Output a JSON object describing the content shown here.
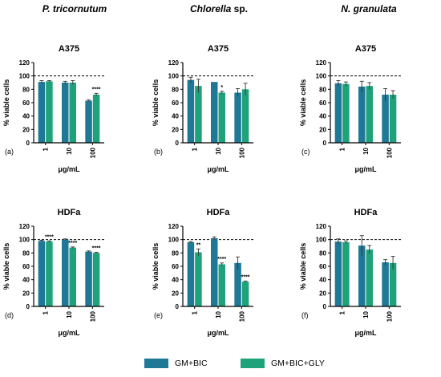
{
  "column_titles": [
    {
      "italic": "P. tricornutum",
      "roman": ""
    },
    {
      "italic": "Chlorella",
      "roman": " sp."
    },
    {
      "italic": "N. granulata",
      "roman": ""
    }
  ],
  "legend": [
    {
      "label": "GM+BIC",
      "color": "#1f7896"
    },
    {
      "label": "GM+BIC+GLY",
      "color": "#1fa27a"
    }
  ],
  "chart_data": [
    {
      "type": "bar",
      "panel_letter": "(a)",
      "title": "A375",
      "xlabel": "μg/mL",
      "ylabel": "% viable cells",
      "categories": [
        "1",
        "10",
        "100"
      ],
      "ylim": [
        0,
        120
      ],
      "yticks": [
        "0",
        "20",
        "40",
        "60",
        "80",
        "100",
        "120"
      ],
      "reference_line": 100,
      "series": [
        {
          "name": "GM+BIC",
          "values": [
            91,
            90,
            63
          ],
          "errors": [
            2,
            2,
            1
          ]
        },
        {
          "name": "GM+BIC+GLY",
          "values": [
            92,
            90,
            72
          ],
          "errors": [
            1,
            3,
            2
          ]
        }
      ],
      "annotations": [
        "",
        "",
        "****"
      ]
    },
    {
      "type": "bar",
      "panel_letter": "(b)",
      "title": "A375",
      "xlabel": "μg/mL",
      "ylabel": "% viable cells",
      "categories": [
        "1",
        "10",
        "100"
      ],
      "ylim": [
        0,
        120
      ],
      "yticks": [
        "0",
        "20",
        "40",
        "60",
        "80",
        "100",
        "120"
      ],
      "reference_line": 100,
      "series": [
        {
          "name": "GM+BIC",
          "values": [
            94,
            91,
            75
          ],
          "errors": [
            4,
            0,
            6
          ]
        },
        {
          "name": "GM+BIC+GLY",
          "values": [
            85,
            75,
            80
          ],
          "errors": [
            10,
            2,
            9
          ]
        }
      ],
      "annotations": [
        "",
        "*",
        ""
      ]
    },
    {
      "type": "bar",
      "panel_letter": "(c)",
      "title": "A375",
      "xlabel": "μg/mL",
      "ylabel": "% viable cells",
      "categories": [
        "1",
        "10",
        "100"
      ],
      "ylim": [
        0,
        120
      ],
      "yticks": [
        "0",
        "20",
        "40",
        "60",
        "80",
        "100",
        "120"
      ],
      "reference_line": 100,
      "series": [
        {
          "name": "GM+BIC",
          "values": [
            89,
            84,
            72
          ],
          "errors": [
            4,
            8,
            9
          ]
        },
        {
          "name": "GM+BIC+GLY",
          "values": [
            88,
            85,
            72
          ],
          "errors": [
            3,
            5,
            6
          ]
        }
      ],
      "annotations": [
        "",
        "",
        ""
      ]
    },
    {
      "type": "bar",
      "panel_letter": "(d)",
      "title": "HDFa",
      "xlabel": "μg/mL",
      "ylabel": "% viable cells",
      "categories": [
        "1",
        "10",
        "100"
      ],
      "ylim": [
        0,
        120
      ],
      "yticks": [
        "0",
        "20",
        "40",
        "60",
        "80",
        "100",
        "120"
      ],
      "reference_line": 100,
      "series": [
        {
          "name": "GM+BIC",
          "values": [
            98,
            100,
            82
          ],
          "errors": [
            1,
            1,
            1
          ]
        },
        {
          "name": "GM+BIC+GLY",
          "values": [
            97,
            88,
            80
          ],
          "errors": [
            1,
            1,
            1
          ]
        }
      ],
      "annotations": [
        "****",
        "****",
        "****"
      ]
    },
    {
      "type": "bar",
      "panel_letter": "(e)",
      "title": "HDFa",
      "xlabel": "μg/mL",
      "ylabel": "% viable cells",
      "categories": [
        "1",
        "10",
        "100"
      ],
      "ylim": [
        0,
        120
      ],
      "yticks": [
        "0",
        "20",
        "40",
        "60",
        "80",
        "100",
        "120"
      ],
      "reference_line": 100,
      "series": [
        {
          "name": "GM+BIC",
          "values": [
            96,
            102,
            65
          ],
          "errors": [
            1,
            2,
            9
          ]
        },
        {
          "name": "GM+BIC+GLY",
          "values": [
            81,
            63,
            37
          ],
          "errors": [
            5,
            2,
            1
          ]
        }
      ],
      "annotations": [
        "**",
        "****",
        "****"
      ]
    },
    {
      "type": "bar",
      "panel_letter": "(f)",
      "title": "HDFa",
      "xlabel": "μg/mL",
      "ylabel": "% viable cells",
      "categories": [
        "1",
        "10",
        "100"
      ],
      "ylim": [
        0,
        120
      ],
      "yticks": [
        "0",
        "20",
        "40",
        "60",
        "80",
        "100",
        "120"
      ],
      "reference_line": 100,
      "series": [
        {
          "name": "GM+BIC",
          "values": [
            97,
            91,
            66
          ],
          "errors": [
            4,
            15,
            4
          ]
        },
        {
          "name": "GM+BIC+GLY",
          "values": [
            96,
            85,
            65
          ],
          "errors": [
            2,
            6,
            10
          ]
        }
      ],
      "annotations": [
        "",
        "",
        ""
      ]
    }
  ]
}
